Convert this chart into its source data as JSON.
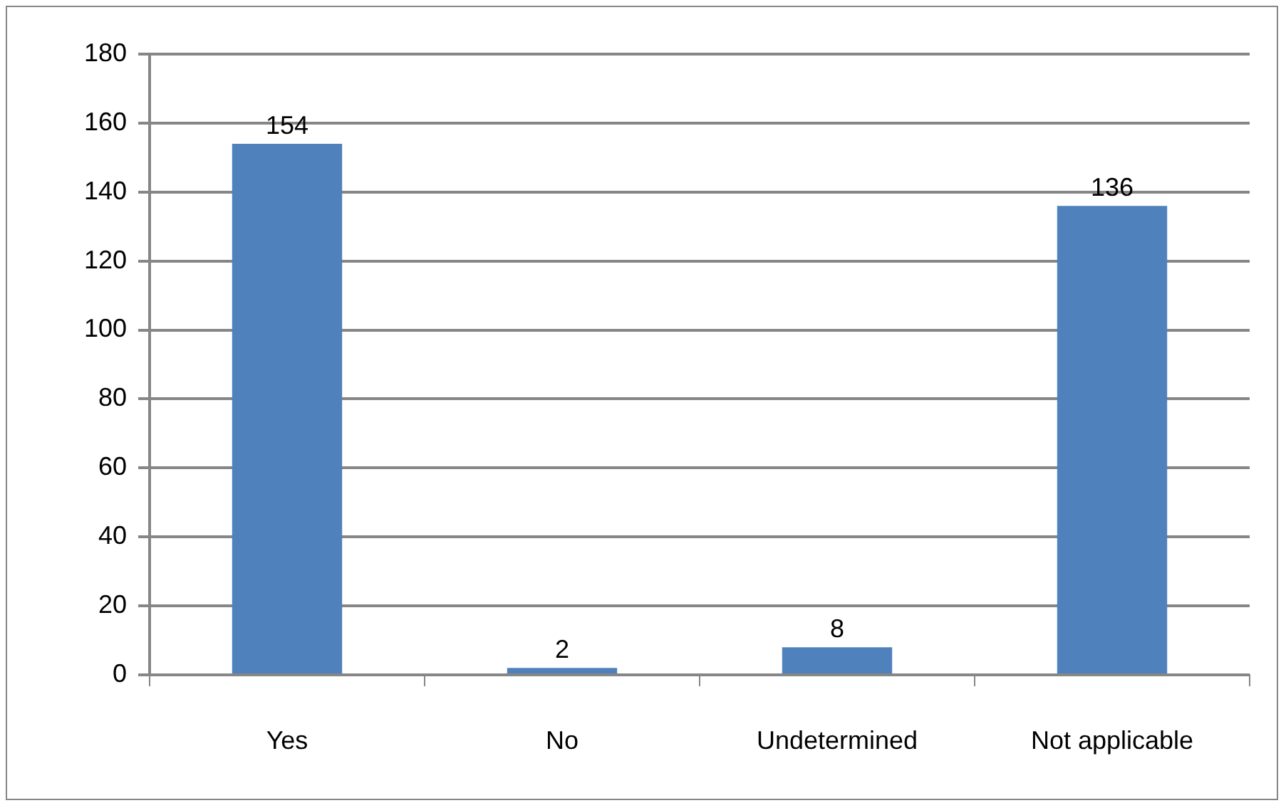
{
  "chart_data": {
    "type": "bar",
    "categories": [
      "Yes",
      "No",
      "Undetermined",
      "Not applicable"
    ],
    "values": [
      154,
      2,
      8,
      136
    ],
    "color": "#4f81bd",
    "ylim": [
      0,
      180
    ],
    "yticks": [
      0,
      20,
      40,
      60,
      80,
      100,
      120,
      140,
      160,
      180
    ],
    "grid": "y",
    "legend": false,
    "data_labels": true
  }
}
